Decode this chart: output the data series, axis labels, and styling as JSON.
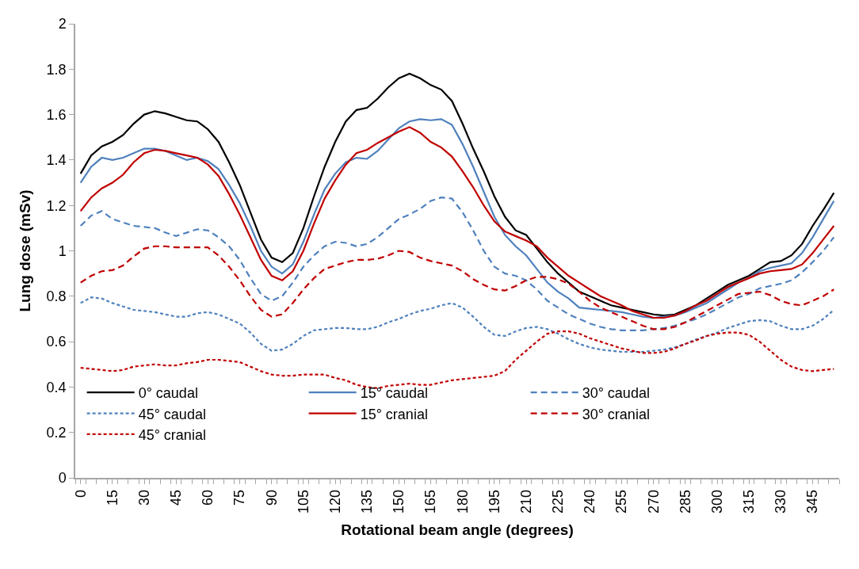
{
  "chart_data": {
    "type": "line",
    "xlabel": "Rotational beam angle (degrees)",
    "ylabel": "Lung dose (mSv)",
    "x": [
      0,
      5,
      10,
      15,
      20,
      25,
      30,
      35,
      40,
      45,
      50,
      55,
      60,
      65,
      70,
      75,
      80,
      85,
      90,
      95,
      100,
      105,
      110,
      115,
      120,
      125,
      130,
      135,
      140,
      145,
      150,
      155,
      160,
      165,
      170,
      175,
      180,
      185,
      190,
      195,
      200,
      205,
      210,
      215,
      220,
      225,
      230,
      235,
      240,
      245,
      250,
      255,
      260,
      265,
      270,
      275,
      280,
      285,
      290,
      295,
      300,
      305,
      310,
      315,
      320,
      325,
      330,
      335,
      340,
      345,
      350,
      355
    ],
    "xlim": [
      -2.5,
      357.5
    ],
    "xticks": [
      0,
      15,
      30,
      45,
      60,
      75,
      90,
      105,
      120,
      135,
      150,
      165,
      180,
      195,
      210,
      225,
      240,
      255,
      270,
      285,
      300,
      315,
      330,
      345
    ],
    "ylim": [
      0,
      2
    ],
    "yticks": [
      0,
      0.2,
      0.4,
      0.6,
      0.8,
      1,
      1.2,
      1.4,
      1.6,
      1.8,
      2
    ],
    "grid": false,
    "legend": "bottom",
    "marker": "none",
    "series": [
      {
        "name": "0° caudal",
        "color": "#000000",
        "line_style": "solid",
        "values": [
          1.34,
          1.42,
          1.46,
          1.48,
          1.51,
          1.56,
          1.6,
          1.615,
          1.605,
          1.59,
          1.575,
          1.57,
          1.535,
          1.48,
          1.39,
          1.29,
          1.17,
          1.05,
          0.97,
          0.95,
          0.99,
          1.1,
          1.24,
          1.37,
          1.48,
          1.57,
          1.62,
          1.63,
          1.67,
          1.72,
          1.76,
          1.78,
          1.76,
          1.73,
          1.71,
          1.66,
          1.56,
          1.45,
          1.35,
          1.24,
          1.15,
          1.09,
          1.07,
          1.01,
          0.95,
          0.9,
          0.86,
          0.82,
          0.8,
          0.78,
          0.76,
          0.75,
          0.74,
          0.73,
          0.72,
          0.715,
          0.72,
          0.74,
          0.76,
          0.79,
          0.82,
          0.85,
          0.87,
          0.89,
          0.92,
          0.95,
          0.955,
          0.98,
          1.03,
          1.11,
          1.18,
          1.255
        ]
      },
      {
        "name": "15° caudal",
        "color": "#4f81bd",
        "line_style": "solid",
        "values": [
          1.3,
          1.37,
          1.41,
          1.4,
          1.41,
          1.43,
          1.45,
          1.45,
          1.44,
          1.42,
          1.4,
          1.41,
          1.395,
          1.36,
          1.29,
          1.21,
          1.11,
          1.0,
          0.93,
          0.9,
          0.94,
          1.04,
          1.16,
          1.27,
          1.34,
          1.39,
          1.41,
          1.405,
          1.44,
          1.49,
          1.54,
          1.57,
          1.58,
          1.575,
          1.58,
          1.555,
          1.47,
          1.37,
          1.26,
          1.15,
          1.07,
          1.02,
          0.98,
          0.92,
          0.86,
          0.82,
          0.79,
          0.75,
          0.745,
          0.74,
          0.735,
          0.73,
          0.72,
          0.71,
          0.705,
          0.71,
          0.715,
          0.73,
          0.75,
          0.77,
          0.8,
          0.83,
          0.86,
          0.88,
          0.91,
          0.925,
          0.935,
          0.945,
          0.99,
          1.06,
          1.14,
          1.22
        ]
      },
      {
        "name": "30° caudal",
        "color": "#4f81bd",
        "line_style": "dashed",
        "values": [
          1.11,
          1.155,
          1.175,
          1.14,
          1.125,
          1.11,
          1.105,
          1.1,
          1.08,
          1.065,
          1.08,
          1.095,
          1.09,
          1.06,
          1.02,
          0.96,
          0.88,
          0.81,
          0.78,
          0.8,
          0.86,
          0.93,
          0.98,
          1.02,
          1.04,
          1.035,
          1.02,
          1.03,
          1.06,
          1.1,
          1.14,
          1.16,
          1.185,
          1.22,
          1.235,
          1.23,
          1.17,
          1.09,
          1.0,
          0.93,
          0.9,
          0.89,
          0.87,
          0.83,
          0.78,
          0.75,
          0.72,
          0.7,
          0.68,
          0.665,
          0.655,
          0.65,
          0.65,
          0.65,
          0.655,
          0.66,
          0.67,
          0.685,
          0.7,
          0.72,
          0.745,
          0.77,
          0.795,
          0.81,
          0.835,
          0.845,
          0.855,
          0.87,
          0.905,
          0.95,
          1.0,
          1.06
        ]
      },
      {
        "name": "45° caudal",
        "color": "#4f81bd",
        "line_style": "dotted",
        "values": [
          0.77,
          0.795,
          0.79,
          0.77,
          0.755,
          0.74,
          0.735,
          0.73,
          0.72,
          0.71,
          0.71,
          0.725,
          0.73,
          0.72,
          0.7,
          0.68,
          0.64,
          0.59,
          0.56,
          0.565,
          0.59,
          0.625,
          0.65,
          0.655,
          0.66,
          0.66,
          0.655,
          0.655,
          0.665,
          0.685,
          0.7,
          0.72,
          0.735,
          0.745,
          0.76,
          0.77,
          0.75,
          0.71,
          0.665,
          0.63,
          0.625,
          0.645,
          0.66,
          0.665,
          0.655,
          0.635,
          0.61,
          0.59,
          0.575,
          0.565,
          0.56,
          0.555,
          0.555,
          0.555,
          0.56,
          0.565,
          0.575,
          0.59,
          0.61,
          0.625,
          0.64,
          0.66,
          0.675,
          0.69,
          0.695,
          0.69,
          0.67,
          0.655,
          0.655,
          0.67,
          0.7,
          0.74
        ]
      },
      {
        "name": "15° cranial",
        "color": "#c00000",
        "line_style": "solid",
        "values": [
          1.175,
          1.235,
          1.275,
          1.3,
          1.335,
          1.39,
          1.43,
          1.445,
          1.44,
          1.43,
          1.42,
          1.41,
          1.38,
          1.33,
          1.25,
          1.16,
          1.06,
          0.96,
          0.89,
          0.87,
          0.91,
          1.0,
          1.12,
          1.23,
          1.31,
          1.38,
          1.43,
          1.445,
          1.475,
          1.5,
          1.525,
          1.545,
          1.52,
          1.48,
          1.455,
          1.415,
          1.35,
          1.28,
          1.2,
          1.13,
          1.085,
          1.065,
          1.045,
          1.02,
          0.97,
          0.93,
          0.89,
          0.86,
          0.83,
          0.8,
          0.78,
          0.76,
          0.735,
          0.72,
          0.705,
          0.705,
          0.715,
          0.735,
          0.76,
          0.78,
          0.81,
          0.84,
          0.86,
          0.88,
          0.9,
          0.91,
          0.915,
          0.92,
          0.94,
          0.99,
          1.05,
          1.11
        ]
      },
      {
        "name": "30° cranial",
        "color": "#c00000",
        "line_style": "dashed",
        "values": [
          0.86,
          0.89,
          0.91,
          0.915,
          0.935,
          0.975,
          1.01,
          1.02,
          1.02,
          1.015,
          1.015,
          1.015,
          1.015,
          0.98,
          0.93,
          0.87,
          0.8,
          0.74,
          0.71,
          0.72,
          0.77,
          0.83,
          0.88,
          0.92,
          0.935,
          0.95,
          0.96,
          0.96,
          0.965,
          0.98,
          1.0,
          0.995,
          0.97,
          0.955,
          0.945,
          0.935,
          0.91,
          0.875,
          0.85,
          0.83,
          0.825,
          0.845,
          0.87,
          0.885,
          0.885,
          0.875,
          0.855,
          0.82,
          0.78,
          0.75,
          0.73,
          0.71,
          0.69,
          0.67,
          0.655,
          0.655,
          0.665,
          0.685,
          0.71,
          0.735,
          0.76,
          0.785,
          0.81,
          0.815,
          0.82,
          0.805,
          0.78,
          0.765,
          0.76,
          0.78,
          0.8,
          0.83
        ]
      },
      {
        "name": "45° cranial",
        "color": "#c00000",
        "line_style": "dotted",
        "values": [
          0.485,
          0.48,
          0.475,
          0.47,
          0.475,
          0.49,
          0.495,
          0.5,
          0.495,
          0.495,
          0.505,
          0.51,
          0.52,
          0.52,
          0.515,
          0.51,
          0.49,
          0.47,
          0.455,
          0.45,
          0.45,
          0.455,
          0.455,
          0.455,
          0.44,
          0.43,
          0.41,
          0.4,
          0.395,
          0.405,
          0.41,
          0.415,
          0.41,
          0.41,
          0.42,
          0.43,
          0.435,
          0.44,
          0.445,
          0.45,
          0.47,
          0.52,
          0.56,
          0.6,
          0.635,
          0.645,
          0.645,
          0.635,
          0.615,
          0.6,
          0.585,
          0.57,
          0.56,
          0.55,
          0.55,
          0.555,
          0.57,
          0.59,
          0.605,
          0.625,
          0.635,
          0.64,
          0.64,
          0.63,
          0.6,
          0.56,
          0.52,
          0.49,
          0.475,
          0.47,
          0.475,
          0.48
        ]
      }
    ]
  }
}
